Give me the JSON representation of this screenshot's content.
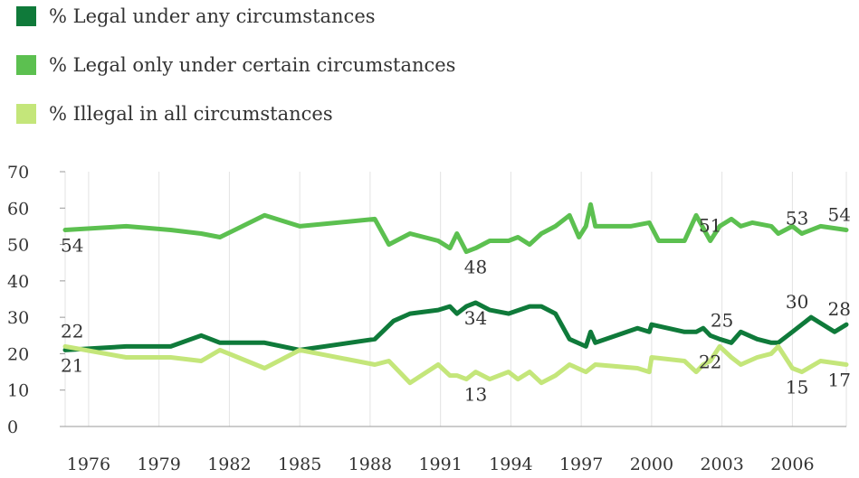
{
  "chart_data": {
    "type": "line",
    "title": "",
    "xlabel": "",
    "ylabel": "",
    "ylim": [
      0,
      70
    ],
    "xlim": [
      1975,
      2008.3
    ],
    "y_ticks": [
      0,
      10,
      20,
      30,
      40,
      50,
      60,
      70
    ],
    "x_ticks": [
      1976,
      1979,
      1982,
      1985,
      1988,
      1991,
      1994,
      1997,
      2000,
      2003,
      2006
    ],
    "x_tick_labels": [
      "1976",
      "1979",
      "1982",
      "1985",
      "1988",
      "1991",
      "1994",
      "1997",
      "2000",
      "2003",
      "2006"
    ],
    "grid": "vertical",
    "legend_position": "top-left",
    "series": [
      {
        "name": "% Legal under any circumstances",
        "color": "#0f7a3a",
        "x": [
          1975.0,
          1977.6,
          1979.5,
          1980.8,
          1981.6,
          1983.5,
          1985.0,
          1988.2,
          1989.0,
          1989.7,
          1990.9,
          1991.4,
          1991.7,
          1992.1,
          1992.5,
          1993.1,
          1993.9,
          1994.8,
          1995.3,
          1995.9,
          1996.5,
          1997.2,
          1997.4,
          1997.6,
          1999.4,
          1999.9,
          2000.0,
          2001.4,
          2001.9,
          2002.2,
          2002.5,
          2002.9,
          2003.4,
          2003.8,
          2004.5,
          2005.1,
          2005.4,
          2006.0,
          2006.8,
          2007.8,
          2008.3
        ],
        "values": [
          21,
          22,
          22,
          25,
          23,
          23,
          21,
          24,
          29,
          31,
          32,
          33,
          31,
          33,
          34,
          32,
          31,
          33,
          33,
          31,
          24,
          22,
          26,
          23,
          27,
          26,
          28,
          26,
          26,
          27,
          25,
          24,
          23,
          26,
          24,
          23,
          23,
          26,
          30,
          26,
          28
        ]
      },
      {
        "name": "% Legal only under certain circumstances",
        "color": "#5cc050",
        "x": [
          1975.0,
          1977.6,
          1979.5,
          1980.8,
          1981.6,
          1983.5,
          1985.0,
          1988.2,
          1988.8,
          1989.7,
          1990.9,
          1991.4,
          1991.7,
          1992.1,
          1992.5,
          1993.1,
          1993.9,
          1994.3,
          1994.8,
          1995.3,
          1995.9,
          1996.5,
          1996.9,
          1997.2,
          1997.4,
          1997.6,
          1999.1,
          1999.9,
          2000.3,
          2000.6,
          2001.4,
          2001.9,
          2002.5,
          2002.9,
          2003.4,
          2003.8,
          2004.3,
          2005.1,
          2005.4,
          2006.0,
          2006.4,
          2007.2,
          2008.3
        ],
        "values": [
          54,
          55,
          54,
          53,
          52,
          58,
          55,
          57,
          50,
          53,
          51,
          49,
          53,
          48,
          49,
          51,
          51,
          52,
          50,
          53,
          55,
          58,
          52,
          55,
          61,
          55,
          55,
          56,
          51,
          51,
          51,
          58,
          51,
          55,
          57,
          55,
          56,
          55,
          53,
          55,
          53,
          55,
          54
        ]
      },
      {
        "name": "% Illegal in all circumstances",
        "color": "#c4e67a",
        "x": [
          1975.0,
          1977.6,
          1979.5,
          1980.8,
          1981.6,
          1983.5,
          1985.0,
          1988.2,
          1988.8,
          1989.7,
          1990.9,
          1991.4,
          1991.7,
          1992.1,
          1992.5,
          1993.1,
          1993.9,
          1994.3,
          1994.8,
          1995.3,
          1995.9,
          1996.5,
          1997.2,
          1997.6,
          1999.4,
          1999.9,
          2000.0,
          2001.4,
          2001.9,
          2002.2,
          2002.5,
          2002.9,
          2003.4,
          2003.8,
          2004.5,
          2005.1,
          2005.4,
          2006.0,
          2006.4,
          2007.2,
          2008.3
        ],
        "values": [
          22,
          19,
          19,
          18,
          21,
          16,
          21,
          17,
          18,
          12,
          17,
          14,
          14,
          13,
          15,
          13,
          15,
          13,
          15,
          12,
          14,
          17,
          15,
          17,
          16,
          15,
          19,
          18,
          15,
          17,
          18,
          22,
          19,
          17,
          19,
          20,
          22,
          16,
          15,
          18,
          17
        ]
      }
    ],
    "data_labels": [
      {
        "text": "22",
        "x": 1975.3,
        "y": 22,
        "position": "above"
      },
      {
        "text": "21",
        "x": 1975.3,
        "y": 21,
        "position": "below"
      },
      {
        "text": "54",
        "x": 1975.3,
        "y": 54,
        "position": "below"
      },
      {
        "text": "48",
        "x": 1992.5,
        "y": 48,
        "position": "below"
      },
      {
        "text": "34",
        "x": 1992.5,
        "y": 34,
        "position": "below"
      },
      {
        "text": "13",
        "x": 1992.5,
        "y": 13,
        "position": "below"
      },
      {
        "text": "51",
        "x": 2002.5,
        "y": 51,
        "position": "above"
      },
      {
        "text": "25",
        "x": 2003.0,
        "y": 25,
        "position": "above"
      },
      {
        "text": "22",
        "x": 2002.5,
        "y": 22,
        "position": "below"
      },
      {
        "text": "53",
        "x": 2006.2,
        "y": 53,
        "position": "above"
      },
      {
        "text": "30",
        "x": 2006.2,
        "y": 30,
        "position": "above"
      },
      {
        "text": "15",
        "x": 2006.2,
        "y": 15,
        "position": "below"
      },
      {
        "text": "54",
        "x": 2008.0,
        "y": 54,
        "position": "above"
      },
      {
        "text": "28",
        "x": 2008.0,
        "y": 28,
        "position": "above"
      },
      {
        "text": "17",
        "x": 2008.0,
        "y": 17,
        "position": "below"
      }
    ]
  }
}
